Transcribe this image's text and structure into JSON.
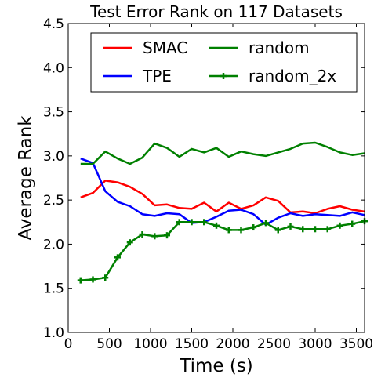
{
  "chart_data": {
    "type": "line",
    "title": "Test Error Rank on 117 Datasets",
    "xlabel": "Time (s)",
    "ylabel": "Average Rank",
    "xlim": [
      0,
      3600
    ],
    "ylim": [
      1.0,
      4.5
    ],
    "xticks": [
      0,
      500,
      1000,
      1500,
      2000,
      2500,
      3000,
      3500
    ],
    "xtick_labels": [
      "0",
      "500",
      "1000",
      "1500",
      "2000",
      "2500",
      "3000",
      "3500"
    ],
    "yticks": [
      1.0,
      1.5,
      2.0,
      2.5,
      3.0,
      3.5,
      4.0,
      4.5
    ],
    "ytick_labels": [
      "1.0",
      "1.5",
      "2.0",
      "2.5",
      "3.0",
      "3.5",
      "4.0",
      "4.5"
    ],
    "grid": false,
    "legend_position": "top",
    "x": [
      150,
      300,
      450,
      600,
      750,
      900,
      1050,
      1200,
      1350,
      1500,
      1650,
      1800,
      1950,
      2100,
      2250,
      2400,
      2550,
      2700,
      2850,
      3000,
      3150,
      3300,
      3450,
      3600
    ],
    "series": [
      {
        "name": "SMAC",
        "color": "#ff0000",
        "marker": "none",
        "values": [
          2.53,
          2.58,
          2.72,
          2.7,
          2.65,
          2.57,
          2.44,
          2.45,
          2.41,
          2.4,
          2.47,
          2.37,
          2.47,
          2.4,
          2.44,
          2.53,
          2.49,
          2.36,
          2.37,
          2.35,
          2.4,
          2.43,
          2.39,
          2.37
        ]
      },
      {
        "name": "TPE",
        "color": "#0000ff",
        "marker": "none",
        "values": [
          2.97,
          2.92,
          2.6,
          2.48,
          2.43,
          2.34,
          2.32,
          2.35,
          2.34,
          2.24,
          2.25,
          2.31,
          2.38,
          2.39,
          2.34,
          2.22,
          2.3,
          2.35,
          2.32,
          2.34,
          2.33,
          2.32,
          2.36,
          2.33
        ]
      },
      {
        "name": "random",
        "color": "#008000",
        "marker": "none",
        "values": [
          2.91,
          2.91,
          3.05,
          2.97,
          2.91,
          2.98,
          3.14,
          3.09,
          2.99,
          3.08,
          3.04,
          3.09,
          2.99,
          3.05,
          3.02,
          3.0,
          3.04,
          3.08,
          3.14,
          3.15,
          3.1,
          3.04,
          3.01,
          3.03
        ]
      },
      {
        "name": "random_2x",
        "color": "#008000",
        "marker": "plus",
        "values": [
          1.59,
          1.6,
          1.62,
          1.85,
          2.02,
          2.11,
          2.09,
          2.1,
          2.25,
          2.25,
          2.25,
          2.21,
          2.16,
          2.16,
          2.19,
          2.24,
          2.16,
          2.2,
          2.17,
          2.17,
          2.17,
          2.21,
          2.23,
          2.26
        ]
      }
    ]
  }
}
